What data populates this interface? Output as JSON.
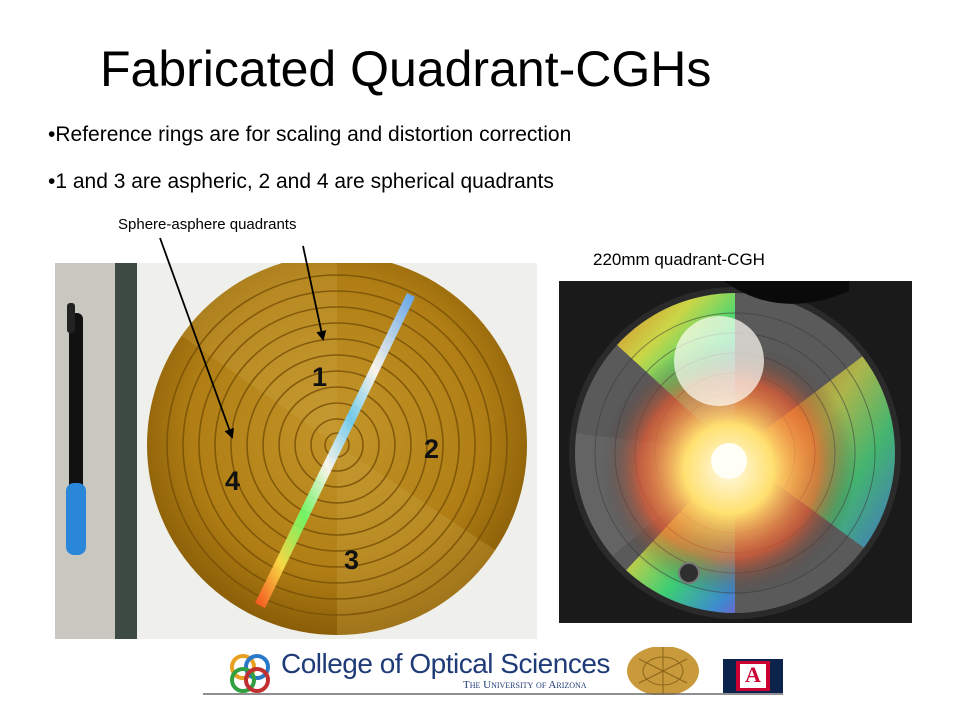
{
  "slide": {
    "title": "Fabricated Quadrant-CGHs",
    "bullets": [
      "•Reference rings are for scaling and distortion correction",
      "•1 and 3 are aspheric, 2 and 4 are spherical quadrants"
    ],
    "annotation": "Sphere-asphere quadrants",
    "right_caption": "220mm quadrant-CGH",
    "quadrant_labels": {
      "q1": "1",
      "q2": "2",
      "q3": "3",
      "q4": "4"
    }
  },
  "footer": {
    "college": "College of Optical Sciences",
    "university": "The University of Arizona",
    "logo_letter": "A"
  },
  "colors": {
    "disk_gold": "#b8860b",
    "arizona_red": "#cc0033",
    "arizona_blue": "#0c234b",
    "footer_blue": "#1f3c78"
  }
}
